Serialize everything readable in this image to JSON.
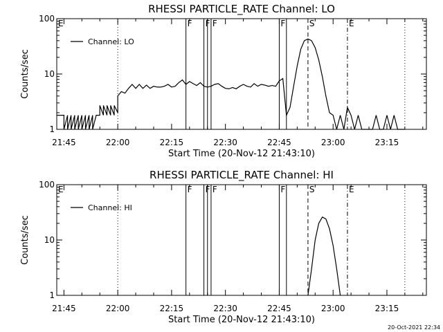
{
  "chart_data": [
    {
      "type": "line",
      "title": "RHESSI PARTICLE_RATE Channel: LO",
      "xlabel": "Start Time (20-Nov-12 21:43:10)",
      "ylabel": "Counts/sec",
      "yscale": "log",
      "ylim": [
        1,
        100
      ],
      "ytick_labels": [
        "1",
        "10",
        "100"
      ],
      "xtick_labels": [
        "21:45",
        "22:00",
        "22:15",
        "22:30",
        "22:45",
        "23:00",
        "23:15"
      ],
      "legend": "top-left",
      "series": [
        {
          "name": "Channel: LO",
          "x": [
            "21:43",
            "21:45",
            "21:45",
            "21:46",
            "21:46",
            "21:47",
            "21:47",
            "21:48",
            "21:48",
            "21:49",
            "21:49",
            "21:50",
            "21:50",
            "21:51",
            "21:51",
            "21:52",
            "21:52",
            "21:53",
            "21:53",
            "21:54",
            "21:54",
            "21:55",
            "21:55",
            "21:56",
            "21:56",
            "21:57",
            "21:57",
            "21:58",
            "21:58",
            "21:59",
            "21:59",
            "22:00",
            "22:00",
            "22:01",
            "22:02",
            "22:03",
            "22:04",
            "22:05",
            "22:06",
            "22:07",
            "22:08",
            "22:09",
            "22:10",
            "22:11",
            "22:12",
            "22:13",
            "22:14",
            "22:15",
            "22:16",
            "22:17",
            "22:18",
            "22:19",
            "22:20",
            "22:21",
            "22:22",
            "22:23",
            "22:24",
            "22:25",
            "22:26",
            "22:27",
            "22:28",
            "22:29",
            "22:30",
            "22:31",
            "22:32",
            "22:33",
            "22:34",
            "22:35",
            "22:36",
            "22:37",
            "22:38",
            "22:39",
            "22:40",
            "22:41",
            "22:42",
            "22:43",
            "22:44",
            "22:45",
            "22:46",
            "22:47",
            "22:48",
            "22:49",
            "22:50",
            "22:51",
            "22:52",
            "22:53",
            "22:54",
            "22:55",
            "22:56",
            "22:57",
            "22:58",
            "22:59",
            "23:00",
            "23:01",
            "23:02",
            "23:03",
            "23:04",
            "23:05",
            "23:06",
            "23:07",
            "23:08",
            "23:09",
            "23:10",
            "23:11",
            "23:12",
            "23:13",
            "23:14",
            "23:15",
            "23:16",
            "23:17",
            "23:18",
            "23:19",
            "23:20"
          ],
          "y": [
            1.8,
            1.8,
            1.0,
            1.8,
            1.0,
            1.8,
            1.0,
            1.8,
            1.0,
            1.8,
            1.0,
            1.8,
            1.0,
            1.8,
            1.0,
            1.8,
            1.0,
            1.8,
            1.0,
            1.8,
            1.8,
            1.8,
            2.7,
            1.8,
            2.7,
            1.8,
            2.7,
            1.8,
            2.7,
            1.8,
            2.7,
            2.0,
            4.0,
            4.8,
            4.5,
            5.5,
            6.5,
            5.5,
            6.5,
            5.5,
            6.3,
            5.5,
            6.0,
            5.8,
            5.8,
            6.0,
            6.5,
            5.8,
            6.0,
            7.0,
            7.8,
            6.5,
            7.3,
            6.7,
            6.2,
            7.0,
            6.0,
            5.8,
            6.0,
            6.5,
            6.7,
            6.0,
            5.5,
            5.4,
            5.7,
            5.4,
            6.0,
            6.5,
            6.0,
            5.8,
            6.7,
            6.0,
            6.5,
            6.3,
            6.0,
            6.2,
            6.0,
            7.5,
            8.3,
            1.8,
            2.5,
            6.0,
            14.0,
            28.0,
            40.0,
            43.0,
            40.0,
            30.0,
            18.0,
            9.0,
            4.0,
            2.0,
            1.8,
            1.0,
            1.8,
            1.0,
            2.5,
            1.8,
            1.0,
            1.8,
            1.0,
            1.0,
            1.0,
            1.0,
            1.8,
            1.0,
            1.0,
            1.8,
            1.0,
            1.8,
            1.0,
            1.0,
            1.0
          ]
        }
      ],
      "flags": [
        {
          "label": "E",
          "x": "21:43",
          "style": "dotted"
        },
        {
          "label": "",
          "x": "22:00",
          "style": "dotted"
        },
        {
          "label": "F",
          "x": "22:19",
          "style": "solid"
        },
        {
          "label": "F",
          "x": "22:24",
          "style": "solid"
        },
        {
          "label": "",
          "x": "22:25",
          "style": "solid"
        },
        {
          "label": "F",
          "x": "22:26",
          "style": "solid"
        },
        {
          "label": "F",
          "x": "22:45",
          "style": "solid"
        },
        {
          "label": "",
          "x": "22:47",
          "style": "solid"
        },
        {
          "label": "S",
          "x": "22:53",
          "style": "dashed"
        },
        {
          "label": "E",
          "x": "23:04",
          "style": "dashdot"
        },
        {
          "label": "",
          "x": "23:20",
          "style": "dotted"
        }
      ]
    },
    {
      "type": "line",
      "title": "RHESSI PARTICLE_RATE Channel: HI",
      "xlabel": "Start Time (20-Nov-12 21:43:10)",
      "ylabel": "Counts/sec",
      "yscale": "log",
      "ylim": [
        1,
        100
      ],
      "ytick_labels": [
        "1",
        "10",
        "100"
      ],
      "xtick_labels": [
        "21:45",
        "22:00",
        "22:15",
        "22:30",
        "22:45",
        "23:00",
        "23:15"
      ],
      "legend": "top-left",
      "series": [
        {
          "name": "Channel: HI",
          "x": [
            "22:53",
            "22:54",
            "22:55",
            "22:56",
            "22:57",
            "22:58",
            "22:59",
            "23:00",
            "23:01",
            "23:02"
          ],
          "y": [
            1.0,
            3.0,
            10.0,
            20.0,
            26.0,
            24.0,
            16.0,
            8.0,
            3.0,
            1.0
          ]
        }
      ],
      "flags": [
        {
          "label": "E",
          "x": "21:43",
          "style": "dotted"
        },
        {
          "label": "",
          "x": "22:00",
          "style": "dotted"
        },
        {
          "label": "F",
          "x": "22:19",
          "style": "solid"
        },
        {
          "label": "F",
          "x": "22:24",
          "style": "solid"
        },
        {
          "label": "",
          "x": "22:25",
          "style": "solid"
        },
        {
          "label": "F",
          "x": "22:26",
          "style": "solid"
        },
        {
          "label": "F",
          "x": "22:45",
          "style": "solid"
        },
        {
          "label": "",
          "x": "22:47",
          "style": "solid"
        },
        {
          "label": "S",
          "x": "22:53",
          "style": "dashed"
        },
        {
          "label": "E",
          "x": "23:04",
          "style": "dashdot"
        },
        {
          "label": "",
          "x": "23:20",
          "style": "dotted"
        }
      ]
    }
  ],
  "timestamp": "20-Oct-2021 22:34"
}
